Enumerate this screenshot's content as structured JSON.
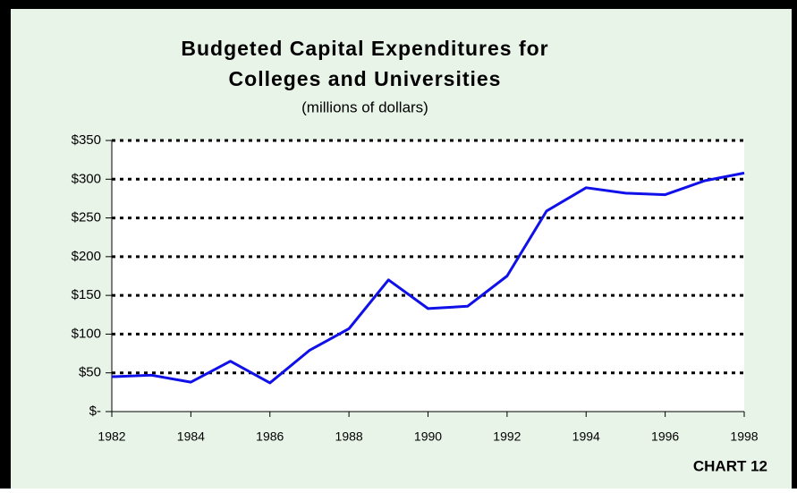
{
  "chart_data": {
    "type": "line",
    "title": [
      "Budgeted Capital Expenditures for",
      "Colleges and Universities"
    ],
    "subtitle": "(millions of dollars)",
    "annotation": "CHART 12",
    "x": [
      1982,
      1983,
      1984,
      1985,
      1986,
      1987,
      1988,
      1989,
      1990,
      1991,
      1992,
      1993,
      1994,
      1995,
      1996,
      1997,
      1998
    ],
    "series": [
      {
        "color": "#1010e8",
        "values": [
          45,
          47,
          38,
          65,
          37,
          79,
          107,
          170,
          133,
          136,
          175,
          259,
          289,
          282,
          280,
          298,
          308
        ]
      }
    ],
    "xlim": [
      1982,
      1998
    ],
    "xticks": [
      1982,
      1984,
      1986,
      1988,
      1990,
      1992,
      1994,
      1996,
      1998
    ],
    "ylim": [
      0,
      350
    ],
    "yticks": [
      {
        "value": 0,
        "label": "$-"
      },
      {
        "value": 50,
        "label": "$50"
      },
      {
        "value": 100,
        "label": "$100"
      },
      {
        "value": 150,
        "label": "$150"
      },
      {
        "value": 200,
        "label": "$200"
      },
      {
        "value": 250,
        "label": "$250"
      },
      {
        "value": 300,
        "label": "$300"
      },
      {
        "value": 350,
        "label": "$350"
      }
    ],
    "grid": true
  }
}
